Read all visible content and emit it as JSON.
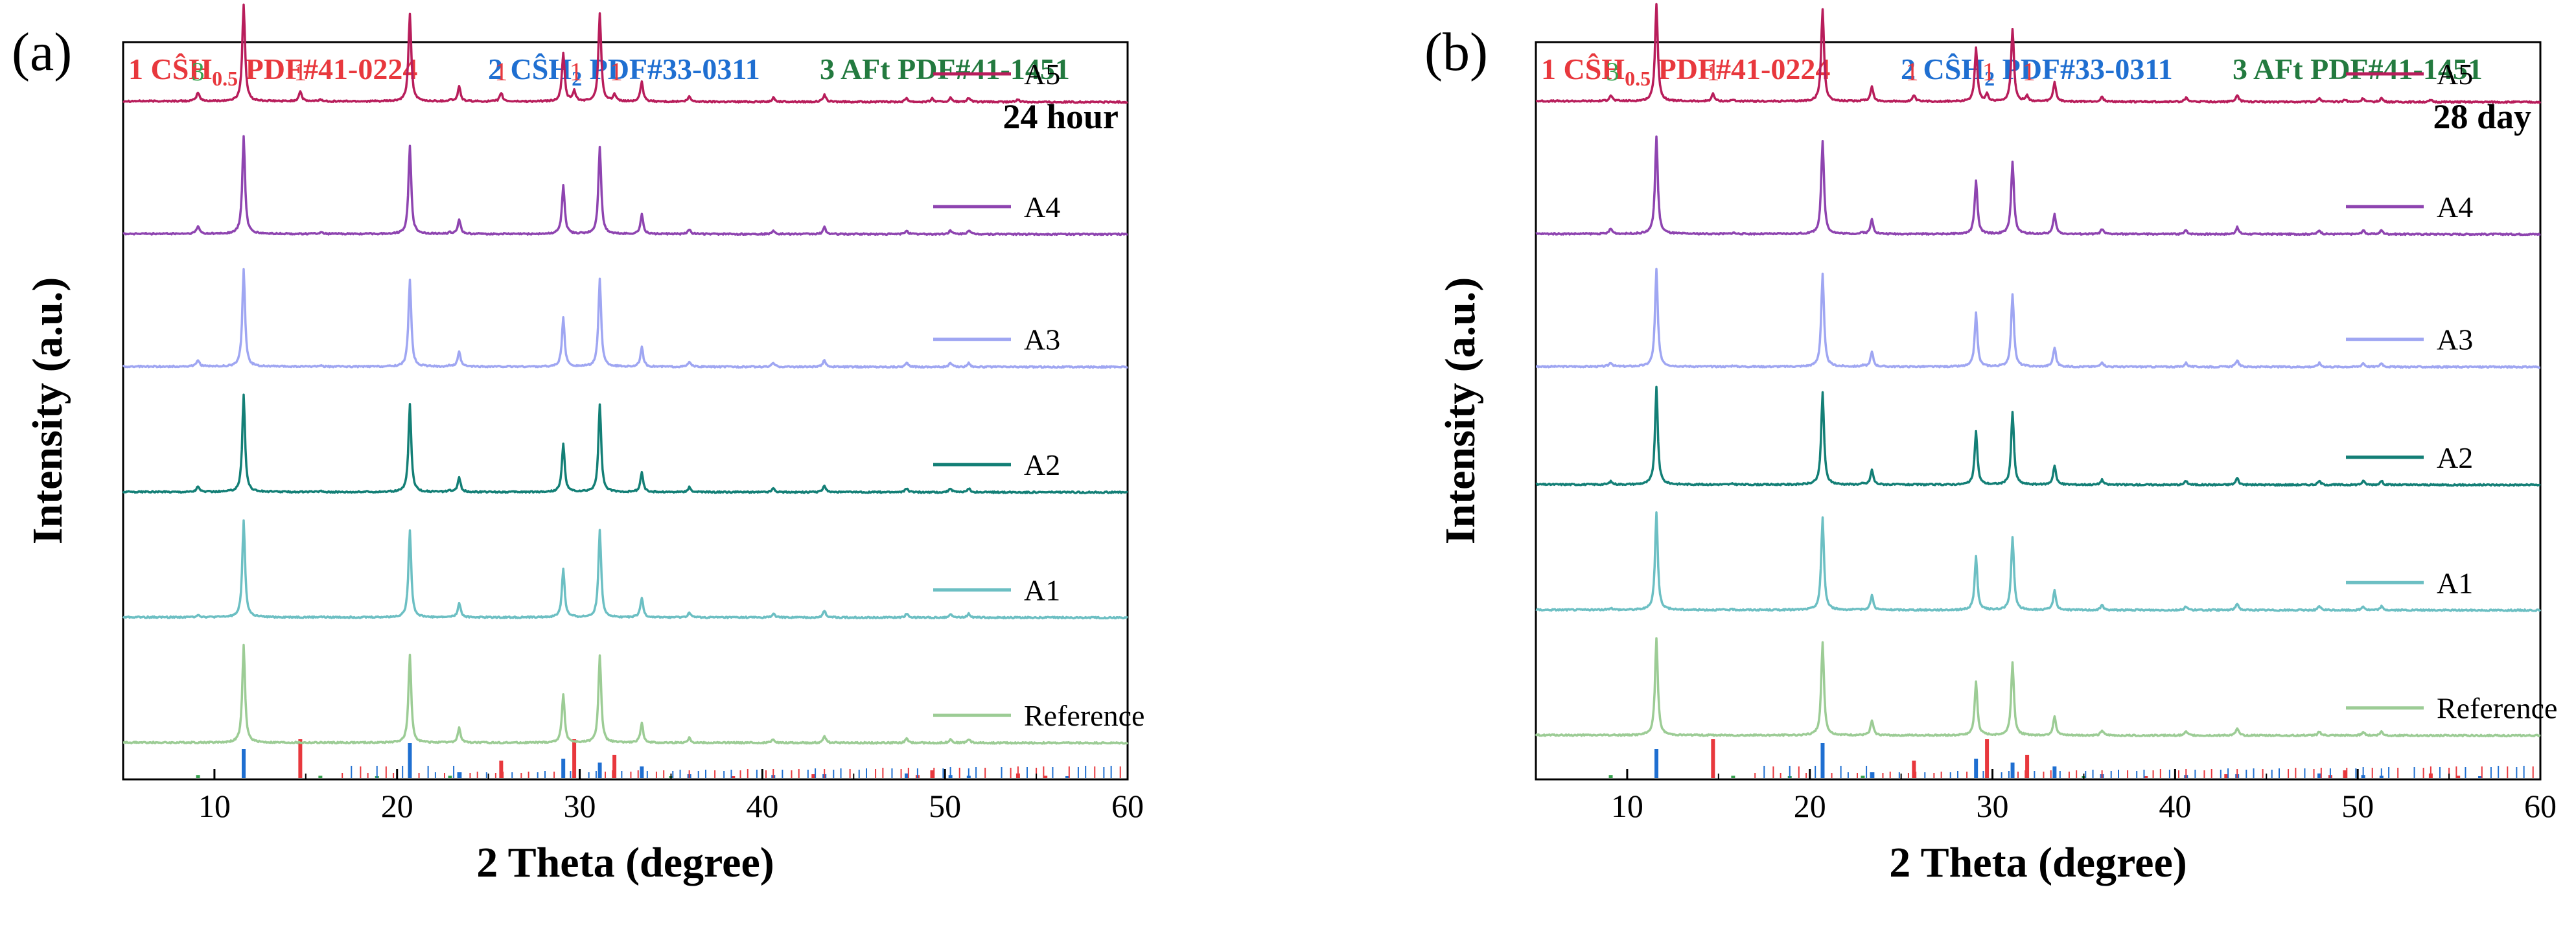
{
  "chart_data": [
    {
      "type": "line",
      "panel_label": "(a)",
      "time_label": "24 hour",
      "xlabel": "2 Theta (degree)",
      "ylabel": "Intensity (a.u.)",
      "xlim": [
        5,
        60
      ],
      "xticks": [
        10,
        20,
        30,
        40,
        50,
        60
      ],
      "legend": [
        {
          "num": "1",
          "name": "CŜH",
          "sub": "0.5",
          "pdf": "PDF#41-0224",
          "color": "#e8383d"
        },
        {
          "num": "2",
          "name": "CŜH",
          "sub": "2",
          "pdf": "PDF#33-0311",
          "color": "#1f6fd1"
        },
        {
          "num": "3",
          "name": "AFt",
          "sub": "",
          "pdf": "PDF#41-1451",
          "color": "#237a3f"
        }
      ],
      "series": [
        {
          "name": "A5",
          "color": "#b81d5b",
          "baseline": 0.92,
          "scale": 1.0,
          "aft": 0.35,
          "bass": 0.35,
          "ref": false
        },
        {
          "name": "A4",
          "color": "#8e44b0",
          "baseline": 0.74,
          "scale": 1.0,
          "aft": 0.3,
          "bass": 0.0,
          "ref": false
        },
        {
          "name": "A3",
          "color": "#9fa6f2",
          "baseline": 0.56,
          "scale": 1.0,
          "aft": 0.25,
          "bass": 0.0,
          "ref": false
        },
        {
          "name": "A2",
          "color": "#137f76",
          "baseline": 0.39,
          "scale": 1.0,
          "aft": 0.2,
          "bass": 0.0,
          "ref": false
        },
        {
          "name": "A1",
          "color": "#6cbfc3",
          "baseline": 0.22,
          "scale": 1.0,
          "aft": 0.1,
          "bass": 0.0,
          "ref": false
        },
        {
          "name": "Reference",
          "color": "#9ccc95",
          "baseline": 0.05,
          "scale": 1.0,
          "aft": 0.0,
          "bass": 0.0,
          "ref": true
        }
      ],
      "peak_annotations": [
        {
          "label": "3",
          "x": 9.1,
          "color": "#36a34e"
        },
        {
          "label": "2",
          "x": 11.7,
          "color": "#1f6fd1"
        },
        {
          "label": "1",
          "x": 14.7,
          "color": "#e8383d"
        },
        {
          "label": "2",
          "x": 20.8,
          "color": "#1f6fd1"
        },
        {
          "label": "1",
          "x": 25.7,
          "color": "#e8383d"
        },
        {
          "label": "2",
          "x": 29.1,
          "color": "#1f6fd1"
        },
        {
          "label": "1",
          "x": 29.8,
          "color": "#e8383d"
        },
        {
          "label": "2",
          "x": 31.1,
          "color": "#1f6fd1"
        },
        {
          "label": "1",
          "x": 32.0,
          "color": "#e8383d"
        },
        {
          "label": "2",
          "x": 33.4,
          "color": "#1f6fd1"
        }
      ],
      "gypsum_peaks": [
        [
          11.6,
          1.0
        ],
        [
          20.7,
          0.9
        ],
        [
          23.4,
          0.15
        ],
        [
          29.1,
          0.5
        ],
        [
          31.1,
          0.9
        ],
        [
          33.4,
          0.2
        ],
        [
          36.0,
          0.05
        ],
        [
          40.6,
          0.04
        ],
        [
          43.4,
          0.07
        ],
        [
          47.9,
          0.04
        ],
        [
          50.3,
          0.04
        ],
        [
          51.3,
          0.04
        ]
      ],
      "bassanite_peaks": [
        [
          14.7,
          0.3
        ],
        [
          25.7,
          0.25
        ],
        [
          29.7,
          0.3
        ],
        [
          31.9,
          0.2
        ],
        [
          49.3,
          0.1
        ],
        [
          54.0,
          0.08
        ]
      ],
      "aft_peaks": [
        [
          9.1,
          0.25
        ],
        [
          15.8,
          0.05
        ],
        [
          22.9,
          0.05
        ]
      ],
      "ref_sticks_bassanite": [
        [
          14.7,
          1.0
        ],
        [
          25.7,
          0.45
        ],
        [
          29.7,
          1.0
        ],
        [
          31.9,
          0.6
        ],
        [
          49.3,
          0.2
        ],
        [
          54.0,
          0.12
        ],
        [
          42.8,
          0.1
        ],
        [
          48.5,
          0.08
        ],
        [
          55.5,
          0.06
        ],
        [
          38.4,
          0.05
        ]
      ],
      "ref_sticks_gypsum": [
        [
          11.6,
          0.75
        ],
        [
          20.7,
          0.9
        ],
        [
          23.4,
          0.15
        ],
        [
          29.1,
          0.5
        ],
        [
          31.1,
          0.4
        ],
        [
          33.4,
          0.3
        ],
        [
          36.0,
          0.1
        ],
        [
          40.6,
          0.08
        ],
        [
          43.4,
          0.1
        ],
        [
          47.9,
          0.12
        ],
        [
          50.3,
          0.08
        ],
        [
          51.3,
          0.06
        ],
        [
          56.7,
          0.05
        ]
      ],
      "ref_sticks_aft": [
        [
          9.1,
          0.08
        ],
        [
          15.8,
          0.06
        ],
        [
          18.9,
          0.05
        ],
        [
          22.9,
          0.06
        ],
        [
          35.0,
          0.05
        ]
      ]
    },
    {
      "type": "line",
      "panel_label": "(b)",
      "time_label": "28 day",
      "xlabel": "2 Theta (degree)",
      "ylabel": "Intensity (a.u.)",
      "xlim": [
        5,
        60
      ],
      "xticks": [
        10,
        20,
        30,
        40,
        50,
        60
      ],
      "legend": [
        {
          "num": "1",
          "name": "CŜH",
          "sub": "0.5",
          "pdf": "PDF#41-0224",
          "color": "#e8383d"
        },
        {
          "num": "2",
          "name": "CŜH",
          "sub": "2",
          "pdf": "PDF#33-0311",
          "color": "#1f6fd1"
        },
        {
          "num": "3",
          "name": "AFt",
          "sub": "",
          "pdf": "PDF#41-1451",
          "color": "#237a3f"
        }
      ],
      "series": [
        {
          "name": "A5",
          "color": "#b81d5b",
          "baseline": 0.92,
          "scale": 1.0,
          "aft": 0.3,
          "bass": 0.3,
          "ref": false
        },
        {
          "name": "A4",
          "color": "#8e44b0",
          "baseline": 0.74,
          "scale": 1.0,
          "aft": 0.25,
          "bass": 0.0,
          "ref": false
        },
        {
          "name": "A3",
          "color": "#9fa6f2",
          "baseline": 0.56,
          "scale": 1.0,
          "aft": 0.2,
          "bass": 0.0,
          "ref": false
        },
        {
          "name": "A2",
          "color": "#137f76",
          "baseline": 0.4,
          "scale": 1.0,
          "aft": 0.15,
          "bass": 0.0,
          "ref": false
        },
        {
          "name": "A1",
          "color": "#6cbfc3",
          "baseline": 0.23,
          "scale": 1.0,
          "aft": 0.1,
          "bass": 0.0,
          "ref": false
        },
        {
          "name": "Reference",
          "color": "#9ccc95",
          "baseline": 0.06,
          "scale": 1.0,
          "aft": 0.0,
          "bass": 0.0,
          "ref": true
        }
      ],
      "peak_annotations": [
        {
          "label": "3",
          "x": 9.2,
          "color": "#36a34e"
        },
        {
          "label": "2",
          "x": 11.6,
          "color": "#1f6fd1"
        },
        {
          "label": "1",
          "x": 14.7,
          "color": "#e8383d"
        },
        {
          "label": "2",
          "x": 20.7,
          "color": "#1f6fd1"
        },
        {
          "label": "1",
          "x": 25.6,
          "color": "#e8383d"
        },
        {
          "label": "2",
          "x": 29.1,
          "color": "#1f6fd1"
        },
        {
          "label": "1",
          "x": 29.8,
          "color": "#e8383d"
        },
        {
          "label": "2",
          "x": 31.0,
          "color": "#1f6fd1"
        },
        {
          "label": "1",
          "x": 32.0,
          "color": "#e8383d"
        },
        {
          "label": "2",
          "x": 33.3,
          "color": "#1f6fd1"
        }
      ],
      "gypsum_peaks": [
        [
          11.6,
          1.0
        ],
        [
          20.7,
          0.95
        ],
        [
          23.4,
          0.15
        ],
        [
          29.1,
          0.55
        ],
        [
          31.1,
          0.75
        ],
        [
          33.4,
          0.2
        ],
        [
          36.0,
          0.05
        ],
        [
          40.6,
          0.04
        ],
        [
          43.4,
          0.07
        ],
        [
          47.9,
          0.04
        ],
        [
          50.3,
          0.04
        ],
        [
          51.3,
          0.04
        ]
      ],
      "bassanite_peaks": [
        [
          14.7,
          0.25
        ],
        [
          25.7,
          0.2
        ],
        [
          29.7,
          0.25
        ],
        [
          31.9,
          0.18
        ],
        [
          49.3,
          0.08
        ],
        [
          54.0,
          0.06
        ]
      ],
      "aft_peaks": [
        [
          9.1,
          0.2
        ],
        [
          15.8,
          0.05
        ],
        [
          22.9,
          0.05
        ]
      ],
      "ref_sticks_bassanite": [
        [
          14.7,
          1.0
        ],
        [
          25.7,
          0.45
        ],
        [
          29.7,
          1.0
        ],
        [
          31.9,
          0.6
        ],
        [
          49.3,
          0.2
        ],
        [
          54.0,
          0.12
        ],
        [
          42.8,
          0.1
        ],
        [
          48.5,
          0.08
        ],
        [
          55.5,
          0.06
        ],
        [
          38.4,
          0.05
        ]
      ],
      "ref_sticks_gypsum": [
        [
          11.6,
          0.75
        ],
        [
          20.7,
          0.9
        ],
        [
          23.4,
          0.15
        ],
        [
          29.1,
          0.5
        ],
        [
          31.1,
          0.4
        ],
        [
          33.4,
          0.3
        ],
        [
          36.0,
          0.1
        ],
        [
          40.6,
          0.08
        ],
        [
          43.4,
          0.1
        ],
        [
          47.9,
          0.12
        ],
        [
          50.3,
          0.08
        ],
        [
          51.3,
          0.06
        ],
        [
          56.7,
          0.05
        ]
      ],
      "ref_sticks_aft": [
        [
          9.1,
          0.08
        ],
        [
          15.8,
          0.06
        ],
        [
          18.9,
          0.05
        ],
        [
          22.9,
          0.06
        ],
        [
          35.0,
          0.05
        ]
      ]
    }
  ]
}
